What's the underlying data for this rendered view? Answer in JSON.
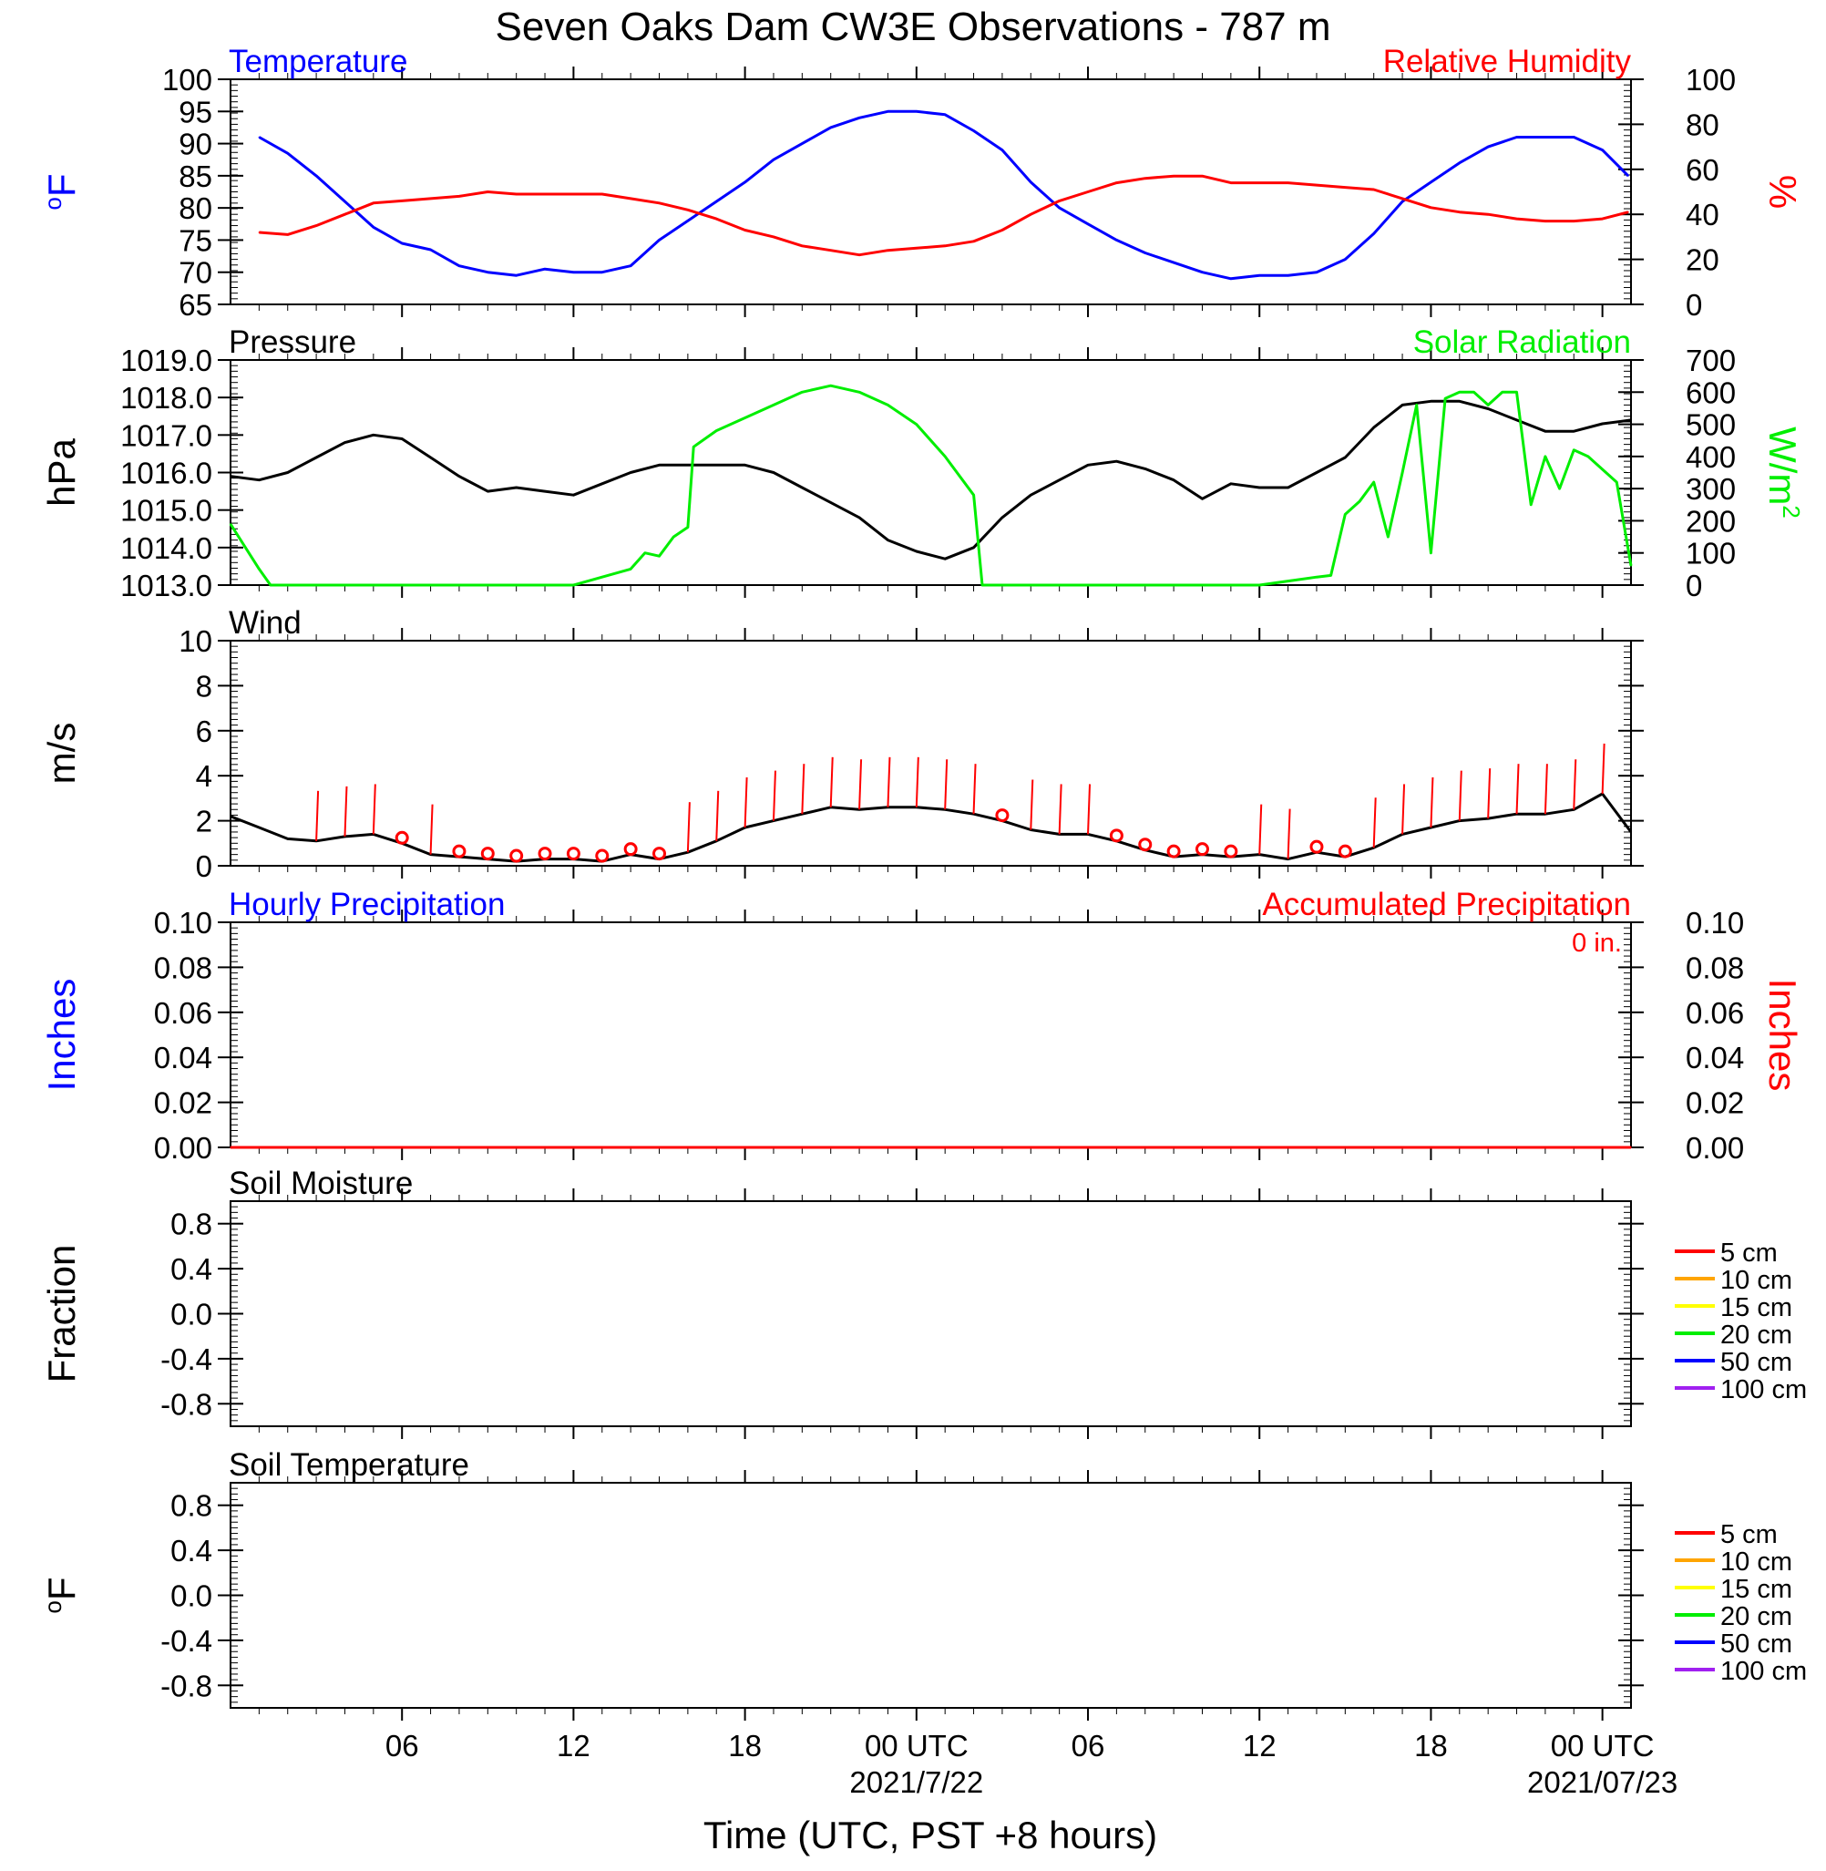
{
  "page": {
    "title": "Seven Oaks Dam CW3E Observations - 787 m",
    "xlabel": "Time (UTC, PST +8 hours)"
  },
  "colors": {
    "blue": "#0000ff",
    "red": "#ff0000",
    "green": "#00ee00",
    "black": "#000000",
    "orange": "#ffa500",
    "yellow": "#ffff00",
    "purple": "#a020f0"
  },
  "time_axis": {
    "tick_labels": [
      {
        "hour": 6,
        "label": "06",
        "sub": ""
      },
      {
        "hour": 12,
        "label": "12",
        "sub": ""
      },
      {
        "hour": 18,
        "label": "18",
        "sub": ""
      },
      {
        "hour": 24,
        "label": "00 UTC",
        "sub": "2021/7/22"
      },
      {
        "hour": 30,
        "label": "06",
        "sub": ""
      },
      {
        "hour": 36,
        "label": "12",
        "sub": ""
      },
      {
        "hour": 42,
        "label": "18",
        "sub": ""
      },
      {
        "hour": 48,
        "label": "00 UTC",
        "sub": "2021/07/23"
      }
    ]
  },
  "chart_data": [
    {
      "type": "line",
      "id": "temperature_humidity",
      "left_title": "Temperature",
      "right_title": "Relative Humidity",
      "ylabel_left": "oF",
      "ylabel_right": "%",
      "ylim_left": [
        65,
        100
      ],
      "ylim_right": [
        0,
        100
      ],
      "yticks_left": [
        "100",
        "95",
        "90",
        "85",
        "80",
        "75",
        "70",
        "65"
      ],
      "yticks_right": [
        "100",
        "80",
        "60",
        "40",
        "20",
        "0"
      ],
      "series": [
        {
          "axis": "left",
          "color": "#0000ff",
          "x": [
            1,
            2,
            3,
            4,
            5,
            6,
            7,
            8,
            9,
            10,
            11,
            12,
            13,
            14,
            15,
            16,
            17,
            18,
            19,
            20,
            21,
            22,
            23,
            24,
            25,
            26,
            27,
            28,
            29,
            30,
            31,
            32,
            33,
            34,
            35,
            36,
            37,
            38,
            39,
            40,
            41,
            42,
            43,
            44,
            45,
            46,
            47,
            48,
            48.9
          ],
          "y": [
            91,
            88.5,
            85,
            81,
            77,
            74.5,
            73.5,
            71,
            70,
            69.5,
            70.5,
            70,
            70,
            71,
            75,
            78,
            81,
            84,
            87.5,
            90,
            92.5,
            94,
            95,
            95,
            94.5,
            92,
            89,
            84,
            80,
            77.5,
            75,
            73,
            71.5,
            70,
            69,
            69.5,
            69.5,
            70,
            72,
            76,
            81,
            84,
            87,
            89.5,
            91,
            91,
            91,
            89,
            85
          ]
        },
        {
          "axis": "right",
          "color": "#ff0000",
          "x": [
            1,
            2,
            3,
            4,
            5,
            6,
            7,
            8,
            9,
            10,
            11,
            12,
            13,
            14,
            15,
            16,
            17,
            18,
            19,
            20,
            21,
            22,
            23,
            24,
            25,
            26,
            27,
            28,
            29,
            30,
            31,
            32,
            33,
            34,
            35,
            36,
            37,
            38,
            39,
            40,
            41,
            42,
            43,
            44,
            45,
            46,
            47,
            48,
            48.9
          ],
          "y": [
            32,
            31,
            35,
            40,
            45,
            46,
            47,
            48,
            50,
            49,
            49,
            49,
            49,
            47,
            45,
            42,
            38,
            33,
            30,
            26,
            24,
            22,
            24,
            25,
            26,
            28,
            33,
            40,
            46,
            50,
            54,
            56,
            57,
            57,
            54,
            54,
            54,
            53,
            52,
            51,
            47,
            43,
            41,
            40,
            38,
            37,
            37,
            38,
            41
          ]
        }
      ]
    },
    {
      "type": "line",
      "id": "pressure_solar",
      "left_title": "Pressure",
      "right_title": "Solar Radiation",
      "ylabel_left": "hPa",
      "ylabel_right": "W/m2",
      "ylim_left": [
        1013,
        1019
      ],
      "ylim_right": [
        0,
        700
      ],
      "yticks_left": [
        "1019.0",
        "1018.0",
        "1017.0",
        "1016.0",
        "1015.0",
        "1014.0",
        "1013.0"
      ],
      "yticks_right": [
        "700",
        "600",
        "500",
        "400",
        "300",
        "200",
        "100",
        "0"
      ],
      "series": [
        {
          "axis": "left",
          "color": "#000000",
          "x": [
            0,
            1,
            2,
            3,
            4,
            5,
            6,
            7,
            8,
            9,
            10,
            11,
            12,
            13,
            14,
            15,
            16,
            17,
            18,
            19,
            20,
            21,
            22,
            23,
            24,
            25,
            26,
            27,
            28,
            29,
            30,
            31,
            32,
            33,
            34,
            35,
            36,
            37,
            38,
            39,
            40,
            41,
            42,
            43,
            44,
            45,
            46,
            47,
            48,
            49
          ],
          "y": [
            1015.9,
            1015.8,
            1016.0,
            1016.4,
            1016.8,
            1017.0,
            1016.9,
            1016.4,
            1015.9,
            1015.5,
            1015.6,
            1015.5,
            1015.4,
            1015.7,
            1016.0,
            1016.2,
            1016.2,
            1016.2,
            1016.2,
            1016.0,
            1015.6,
            1015.2,
            1014.8,
            1014.2,
            1013.9,
            1013.7,
            1014.0,
            1014.8,
            1015.4,
            1015.8,
            1016.2,
            1016.3,
            1016.1,
            1015.8,
            1015.3,
            1015.7,
            1015.6,
            1015.6,
            1016.0,
            1016.4,
            1017.2,
            1017.8,
            1017.9,
            1017.9,
            1017.7,
            1017.4,
            1017.1,
            1017.1,
            1017.3,
            1017.4
          ]
        },
        {
          "axis": "right",
          "color": "#00ee00",
          "x": [
            0,
            1,
            1.4,
            6,
            12,
            13,
            14,
            14.5,
            15,
            15.5,
            16,
            16.2,
            17,
            18,
            19,
            20,
            21,
            22,
            23,
            24,
            25,
            26,
            26.3,
            30,
            36,
            38,
            38.5,
            39,
            39.5,
            40,
            40.5,
            41,
            41.5,
            42,
            42.5,
            43,
            43.5,
            44,
            44.5,
            45,
            45.5,
            46,
            46.5,
            47,
            47.5,
            48,
            48.5,
            49
          ],
          "y": [
            190,
            50,
            0,
            0,
            0,
            25,
            50,
            100,
            90,
            150,
            180,
            430,
            480,
            520,
            560,
            600,
            620,
            600,
            560,
            500,
            400,
            280,
            0,
            0,
            0,
            25,
            30,
            220,
            260,
            320,
            150,
            350,
            560,
            100,
            580,
            600,
            600,
            560,
            600,
            600,
            250,
            400,
            300,
            420,
            400,
            360,
            320,
            60
          ]
        }
      ]
    },
    {
      "type": "line",
      "id": "wind",
      "left_title": "Wind",
      "ylabel_left": "m/s",
      "ylim_left": [
        0,
        10
      ],
      "yticks_left": [
        "10",
        "8",
        "6",
        "4",
        "2",
        "0"
      ],
      "series": [
        {
          "axis": "left",
          "color": "#000000",
          "x": [
            0,
            1,
            2,
            3,
            4,
            5,
            6,
            7,
            8,
            9,
            10,
            11,
            12,
            13,
            14,
            15,
            16,
            17,
            18,
            19,
            20,
            21,
            22,
            23,
            24,
            25,
            26,
            27,
            28,
            29,
            30,
            31,
            32,
            33,
            34,
            35,
            36,
            37,
            38,
            39,
            40,
            41,
            42,
            43,
            44,
            45,
            46,
            47,
            48,
            49
          ],
          "y": [
            2.2,
            1.7,
            1.2,
            1.1,
            1.3,
            1.4,
            1.0,
            0.5,
            0.4,
            0.3,
            0.2,
            0.3,
            0.3,
            0.2,
            0.5,
            0.3,
            0.6,
            1.1,
            1.7,
            2.0,
            2.3,
            2.6,
            2.5,
            2.6,
            2.6,
            2.5,
            2.3,
            2.0,
            1.6,
            1.4,
            1.4,
            1.1,
            0.7,
            0.4,
            0.5,
            0.4,
            0.5,
            0.3,
            0.6,
            0.4,
            0.8,
            1.4,
            1.7,
            2.0,
            2.1,
            2.3,
            2.3,
            2.5,
            3.2,
            1.5
          ]
        }
      ]
    },
    {
      "type": "line",
      "id": "precipitation",
      "left_title": "Hourly Precipitation",
      "right_title": "Accumulated Precipitation",
      "annotation": "0 in.",
      "ylabel_left": "Inches",
      "ylabel_right": "Inches",
      "ylim_left": [
        0,
        0.1
      ],
      "ylim_right": [
        0,
        0.1
      ],
      "yticks_left": [
        "0.10",
        "0.08",
        "0.06",
        "0.04",
        "0.02",
        "0.00"
      ],
      "yticks_right": [
        "0.10",
        "0.08",
        "0.06",
        "0.04",
        "0.02",
        "0.00"
      ],
      "series": [
        {
          "axis": "right",
          "color": "#ff0000",
          "x": [
            0,
            49
          ],
          "y": [
            0,
            0
          ]
        }
      ]
    },
    {
      "type": "line",
      "id": "soil_moisture",
      "left_title": "Soil Moisture",
      "ylabel_left": "Fraction",
      "ylim_left": [
        -1,
        1
      ],
      "yticks_left": [
        "0.8",
        "0.4",
        "0.0",
        "-0.4",
        "-0.8"
      ],
      "legend": [
        {
          "name": "5 cm",
          "color": "#ff0000"
        },
        {
          "name": "10 cm",
          "color": "#ffa500"
        },
        {
          "name": "15 cm",
          "color": "#ffff00"
        },
        {
          "name": "20 cm",
          "color": "#00ee00"
        },
        {
          "name": "50 cm",
          "color": "#0000ff"
        },
        {
          "name": "100 cm",
          "color": "#a020f0"
        }
      ],
      "series": []
    },
    {
      "type": "line",
      "id": "soil_temperature",
      "left_title": "Soil Temperature",
      "ylabel_left": "oF",
      "ylim_left": [
        -1,
        1
      ],
      "yticks_left": [
        "0.8",
        "0.4",
        "0.0",
        "-0.4",
        "-0.8"
      ],
      "legend": [
        {
          "name": "5 cm",
          "color": "#ff0000"
        },
        {
          "name": "10 cm",
          "color": "#ffa500"
        },
        {
          "name": "15 cm",
          "color": "#ffff00"
        },
        {
          "name": "20 cm",
          "color": "#00ee00"
        },
        {
          "name": "50 cm",
          "color": "#0000ff"
        },
        {
          "name": "100 cm",
          "color": "#a020f0"
        }
      ],
      "series": []
    }
  ],
  "wind_barbs": {
    "color": "#ff0000",
    "calm_hours": [
      6,
      8,
      9,
      10,
      11,
      12,
      13,
      14,
      15,
      27,
      31,
      32,
      33,
      34,
      35,
      38,
      39
    ],
    "barb_hours": [
      3,
      4,
      5,
      7,
      16,
      17,
      18,
      19,
      20,
      21,
      22,
      23,
      24,
      25,
      26,
      28,
      29,
      30,
      36,
      37,
      40,
      41,
      42,
      43,
      44,
      45,
      46,
      47,
      48
    ]
  }
}
